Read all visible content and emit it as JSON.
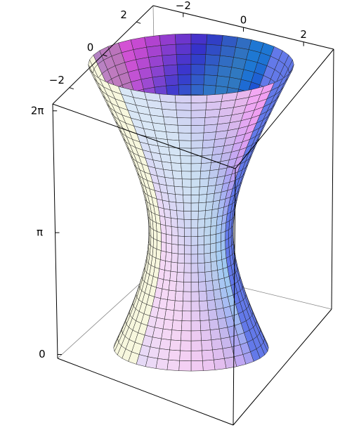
{
  "chart_data": {
    "type": "surface3d",
    "xlim": [
      -3,
      3
    ],
    "xticks": [
      {
        "value": -2,
        "label": "−2"
      },
      0,
      2
    ],
    "ylim": [
      -3,
      3
    ],
    "yticks": [
      {
        "value": -2,
        "label": "−2"
      },
      0,
      2
    ],
    "zlim": [
      -0.1,
      6.46
    ],
    "zticks": [
      0,
      {
        "value": 3.1416,
        "label": "π"
      },
      {
        "value": 6.2832,
        "label": "2π"
      }
    ],
    "box": true
  }
}
